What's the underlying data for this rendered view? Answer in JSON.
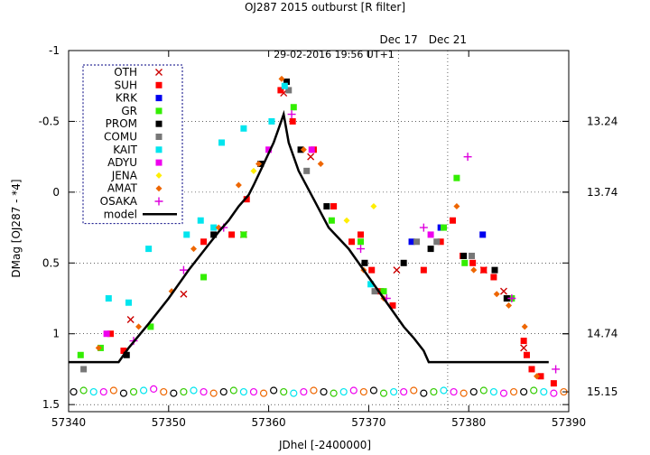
{
  "chart_data": {
    "type": "scatter",
    "title": "OJ287 2015 outburst [R filter]",
    "subtitle": "29-02-2016  19:56 UT+1",
    "xlabel": "JDhel [-2400000]",
    "ylabel": "DMag [OJ287 - *4]",
    "xlim": [
      57340,
      57390
    ],
    "ylim": [
      -1,
      1.55
    ],
    "y_inverted": true,
    "x_ticks": [
      "57340",
      "57350",
      "57360",
      "57370",
      "57380",
      "57390"
    ],
    "y_ticks": [
      "-1",
      "-0.5",
      "0",
      "0.5",
      "1",
      "1.5"
    ],
    "right_axis_labels": [
      {
        "y": -0.5,
        "label": "13.24"
      },
      {
        "y": 0,
        "label": "13.74"
      },
      {
        "y": 1,
        "label": "14.74"
      },
      {
        "y": 1.41,
        "label": "15.15"
      }
    ],
    "vertical_markers": [
      {
        "x": 57373,
        "label": "Dec 17"
      },
      {
        "x": 57377.9,
        "label": "Dec 21"
      }
    ],
    "grid": true,
    "legend_position": "top-left",
    "series": [
      {
        "name": "OTH",
        "color": "#cc0000",
        "marker": "x",
        "x": [
          57346.2,
          57351.5,
          57357.5,
          57361.5,
          57364.2,
          57372.8,
          57381.5,
          57383.5,
          57385.5
        ],
        "y": [
          0.9,
          0.72,
          0.3,
          -0.7,
          -0.25,
          0.55,
          0.55,
          0.7,
          1.1
        ]
      },
      {
        "name": "SUH",
        "color": "#ff0000",
        "marker": "square",
        "x": [
          57344.2,
          57345.5,
          57353.5,
          57356.3,
          57357.8,
          57361.2,
          57362.4,
          57364.5,
          57366.5,
          57368.3,
          57369.2,
          57370.3,
          57371.2,
          57372.4,
          57375.5,
          57377.2,
          57378.4,
          57379.4,
          57380.4,
          57381.5,
          57382.5,
          57385.5,
          57385.8,
          57386.3,
          57387.2,
          57388.5
        ],
        "y": [
          1.0,
          1.12,
          0.35,
          0.3,
          0.05,
          -0.72,
          -0.5,
          -0.3,
          0.1,
          0.35,
          0.3,
          0.55,
          0.7,
          0.8,
          0.55,
          0.35,
          0.2,
          0.45,
          0.5,
          0.55,
          0.6,
          1.05,
          1.15,
          1.25,
          1.3,
          1.35
        ]
      },
      {
        "name": "KRK",
        "color": "#0000ee",
        "marker": "square",
        "x": [
          57374.3,
          57377.2,
          57381.4
        ],
        "y": [
          0.35,
          0.25,
          0.3
        ]
      },
      {
        "name": "GR",
        "color": "#33ee00",
        "marker": "square",
        "x": [
          57341.2,
          57343.2,
          57348.2,
          57353.5,
          57357.5,
          57362.5,
          57366.3,
          57369.2,
          57371.5,
          57377.5,
          57378.8,
          57379.6,
          57384.3
        ],
        "y": [
          1.15,
          1.1,
          0.95,
          0.6,
          0.3,
          -0.6,
          0.2,
          0.35,
          0.7,
          0.25,
          -0.1,
          0.5,
          0.75
        ]
      },
      {
        "name": "PROM",
        "color": "#000000",
        "marker": "square",
        "x": [
          57345.8,
          57354.5,
          57359.2,
          57361.8,
          57363.2,
          57365.8,
          57369.6,
          57373.5,
          57376.2,
          57379.5,
          57382.6,
          57383.8
        ],
        "y": [
          1.15,
          0.3,
          -0.2,
          -0.78,
          -0.3,
          0.1,
          0.5,
          0.5,
          0.4,
          0.45,
          0.55,
          0.75
        ]
      },
      {
        "name": "COMU",
        "color": "#777777",
        "marker": "square",
        "x": [
          57341.5,
          57362.0,
          57363.8,
          57370.6,
          57374.8,
          57376.8,
          57380.3
        ],
        "y": [
          1.25,
          -0.72,
          -0.15,
          0.7,
          0.35,
          0.35,
          0.45
        ]
      },
      {
        "name": "KAIT",
        "color": "#00e5ee",
        "marker": "square",
        "x": [
          57344.0,
          57346.0,
          57348.0,
          57351.8,
          57353.2,
          57354.5,
          57355.3,
          57357.5,
          57360.3,
          57361.6,
          57370.2
        ],
        "y": [
          0.75,
          0.78,
          0.4,
          0.3,
          0.2,
          0.25,
          -0.35,
          -0.45,
          -0.5,
          -0.75,
          0.65
        ]
      },
      {
        "name": "ADYU",
        "color": "#ee00ee",
        "marker": "square",
        "x": [
          57343.8,
          57360.0,
          57364.3,
          57376.2
        ],
        "y": [
          1.0,
          -0.3,
          -0.3,
          0.3
        ]
      },
      {
        "name": "JENA",
        "color": "#ffee00",
        "marker": "diamond",
        "x": [
          57358.5,
          57367.8,
          57370.5
        ],
        "y": [
          -0.15,
          0.2,
          0.1
        ]
      },
      {
        "name": "AMAT",
        "color": "#ee6600",
        "marker": "diamond",
        "x": [
          57343.0,
          57347.0,
          57350.3,
          57352.5,
          57355.0,
          57357.0,
          57359.0,
          57361.3,
          57363.5,
          57365.2,
          57369.5,
          57371.5,
          57378.8,
          57380.5,
          57382.8,
          57384.0,
          57385.6,
          57386.8
        ],
        "y": [
          1.1,
          0.95,
          0.7,
          0.4,
          0.25,
          -0.05,
          -0.2,
          -0.8,
          -0.3,
          -0.2,
          0.55,
          0.75,
          0.1,
          0.55,
          0.72,
          0.8,
          0.95,
          1.3
        ]
      },
      {
        "name": "OSAKA",
        "color": "#dd00dd",
        "marker": "plus",
        "x": [
          57346.5,
          57351.5,
          57355.5,
          57362.3,
          57369.2,
          57371.8,
          57375.5,
          57379.9,
          57384.3,
          57388.7
        ],
        "y": [
          1.05,
          0.55,
          0.25,
          -0.55,
          0.4,
          0.75,
          0.25,
          -0.25,
          0.75,
          1.25
        ]
      },
      {
        "name": "model",
        "color": "#000000",
        "marker": "line",
        "x": [
          57340,
          57345,
          57346,
          57348,
          57350,
          57352,
          57354,
          57355,
          57356,
          57357,
          57358,
          57358.5,
          57359.5,
          57360.5,
          57361.0,
          57361.5,
          57362.0,
          57363.0,
          57364.5,
          57366,
          57368,
          57370,
          57372,
          57373.5,
          57374.5,
          57375.5,
          57376,
          57388
        ],
        "y": [
          1.2,
          1.2,
          1.1,
          0.93,
          0.75,
          0.55,
          0.37,
          0.28,
          0.2,
          0.1,
          0.02,
          -0.05,
          -0.2,
          -0.35,
          -0.45,
          -0.55,
          -0.35,
          -0.15,
          0.05,
          0.25,
          0.4,
          0.6,
          0.8,
          0.95,
          1.03,
          1.12,
          1.2,
          1.2
        ]
      }
    ],
    "baseline_points": {
      "note_colors": [
        "#000000",
        "#33cc00",
        "#00e5ee",
        "#ee00ee",
        "#ee6600"
      ],
      "x": [
        57340.5,
        57341.5,
        57342.5,
        57343.5,
        57344.5,
        57345.5,
        57346.5,
        57347.5,
        57348.5,
        57349.5,
        57350.5,
        57351.5,
        57352.5,
        57353.5,
        57354.5,
        57355.5,
        57356.5,
        57357.5,
        57358.5,
        57359.5,
        57360.5,
        57361.5,
        57362.5,
        57363.5,
        57364.5,
        57365.5,
        57366.5,
        57367.5,
        57368.5,
        57369.5,
        57370.5,
        57371.5,
        57372.5,
        57373.5,
        57374.5,
        57375.5,
        57376.5,
        57377.5,
        57378.5,
        57379.5,
        57380.5,
        57381.5,
        57382.5,
        57383.5,
        57384.5,
        57385.5,
        57386.5,
        57387.5,
        57388.5,
        57389.5
      ],
      "y": [
        1.41,
        1.4,
        1.41,
        1.41,
        1.4,
        1.42,
        1.41,
        1.4,
        1.39,
        1.41,
        1.42,
        1.41,
        1.4,
        1.41,
        1.42,
        1.41,
        1.4,
        1.41,
        1.41,
        1.42,
        1.4,
        1.41,
        1.42,
        1.41,
        1.4,
        1.41,
        1.42,
        1.41,
        1.4,
        1.41,
        1.4,
        1.42,
        1.41,
        1.41,
        1.4,
        1.42,
        1.41,
        1.4,
        1.41,
        1.42,
        1.41,
        1.4,
        1.41,
        1.42,
        1.41,
        1.41,
        1.4,
        1.41,
        1.42,
        1.41
      ]
    }
  }
}
